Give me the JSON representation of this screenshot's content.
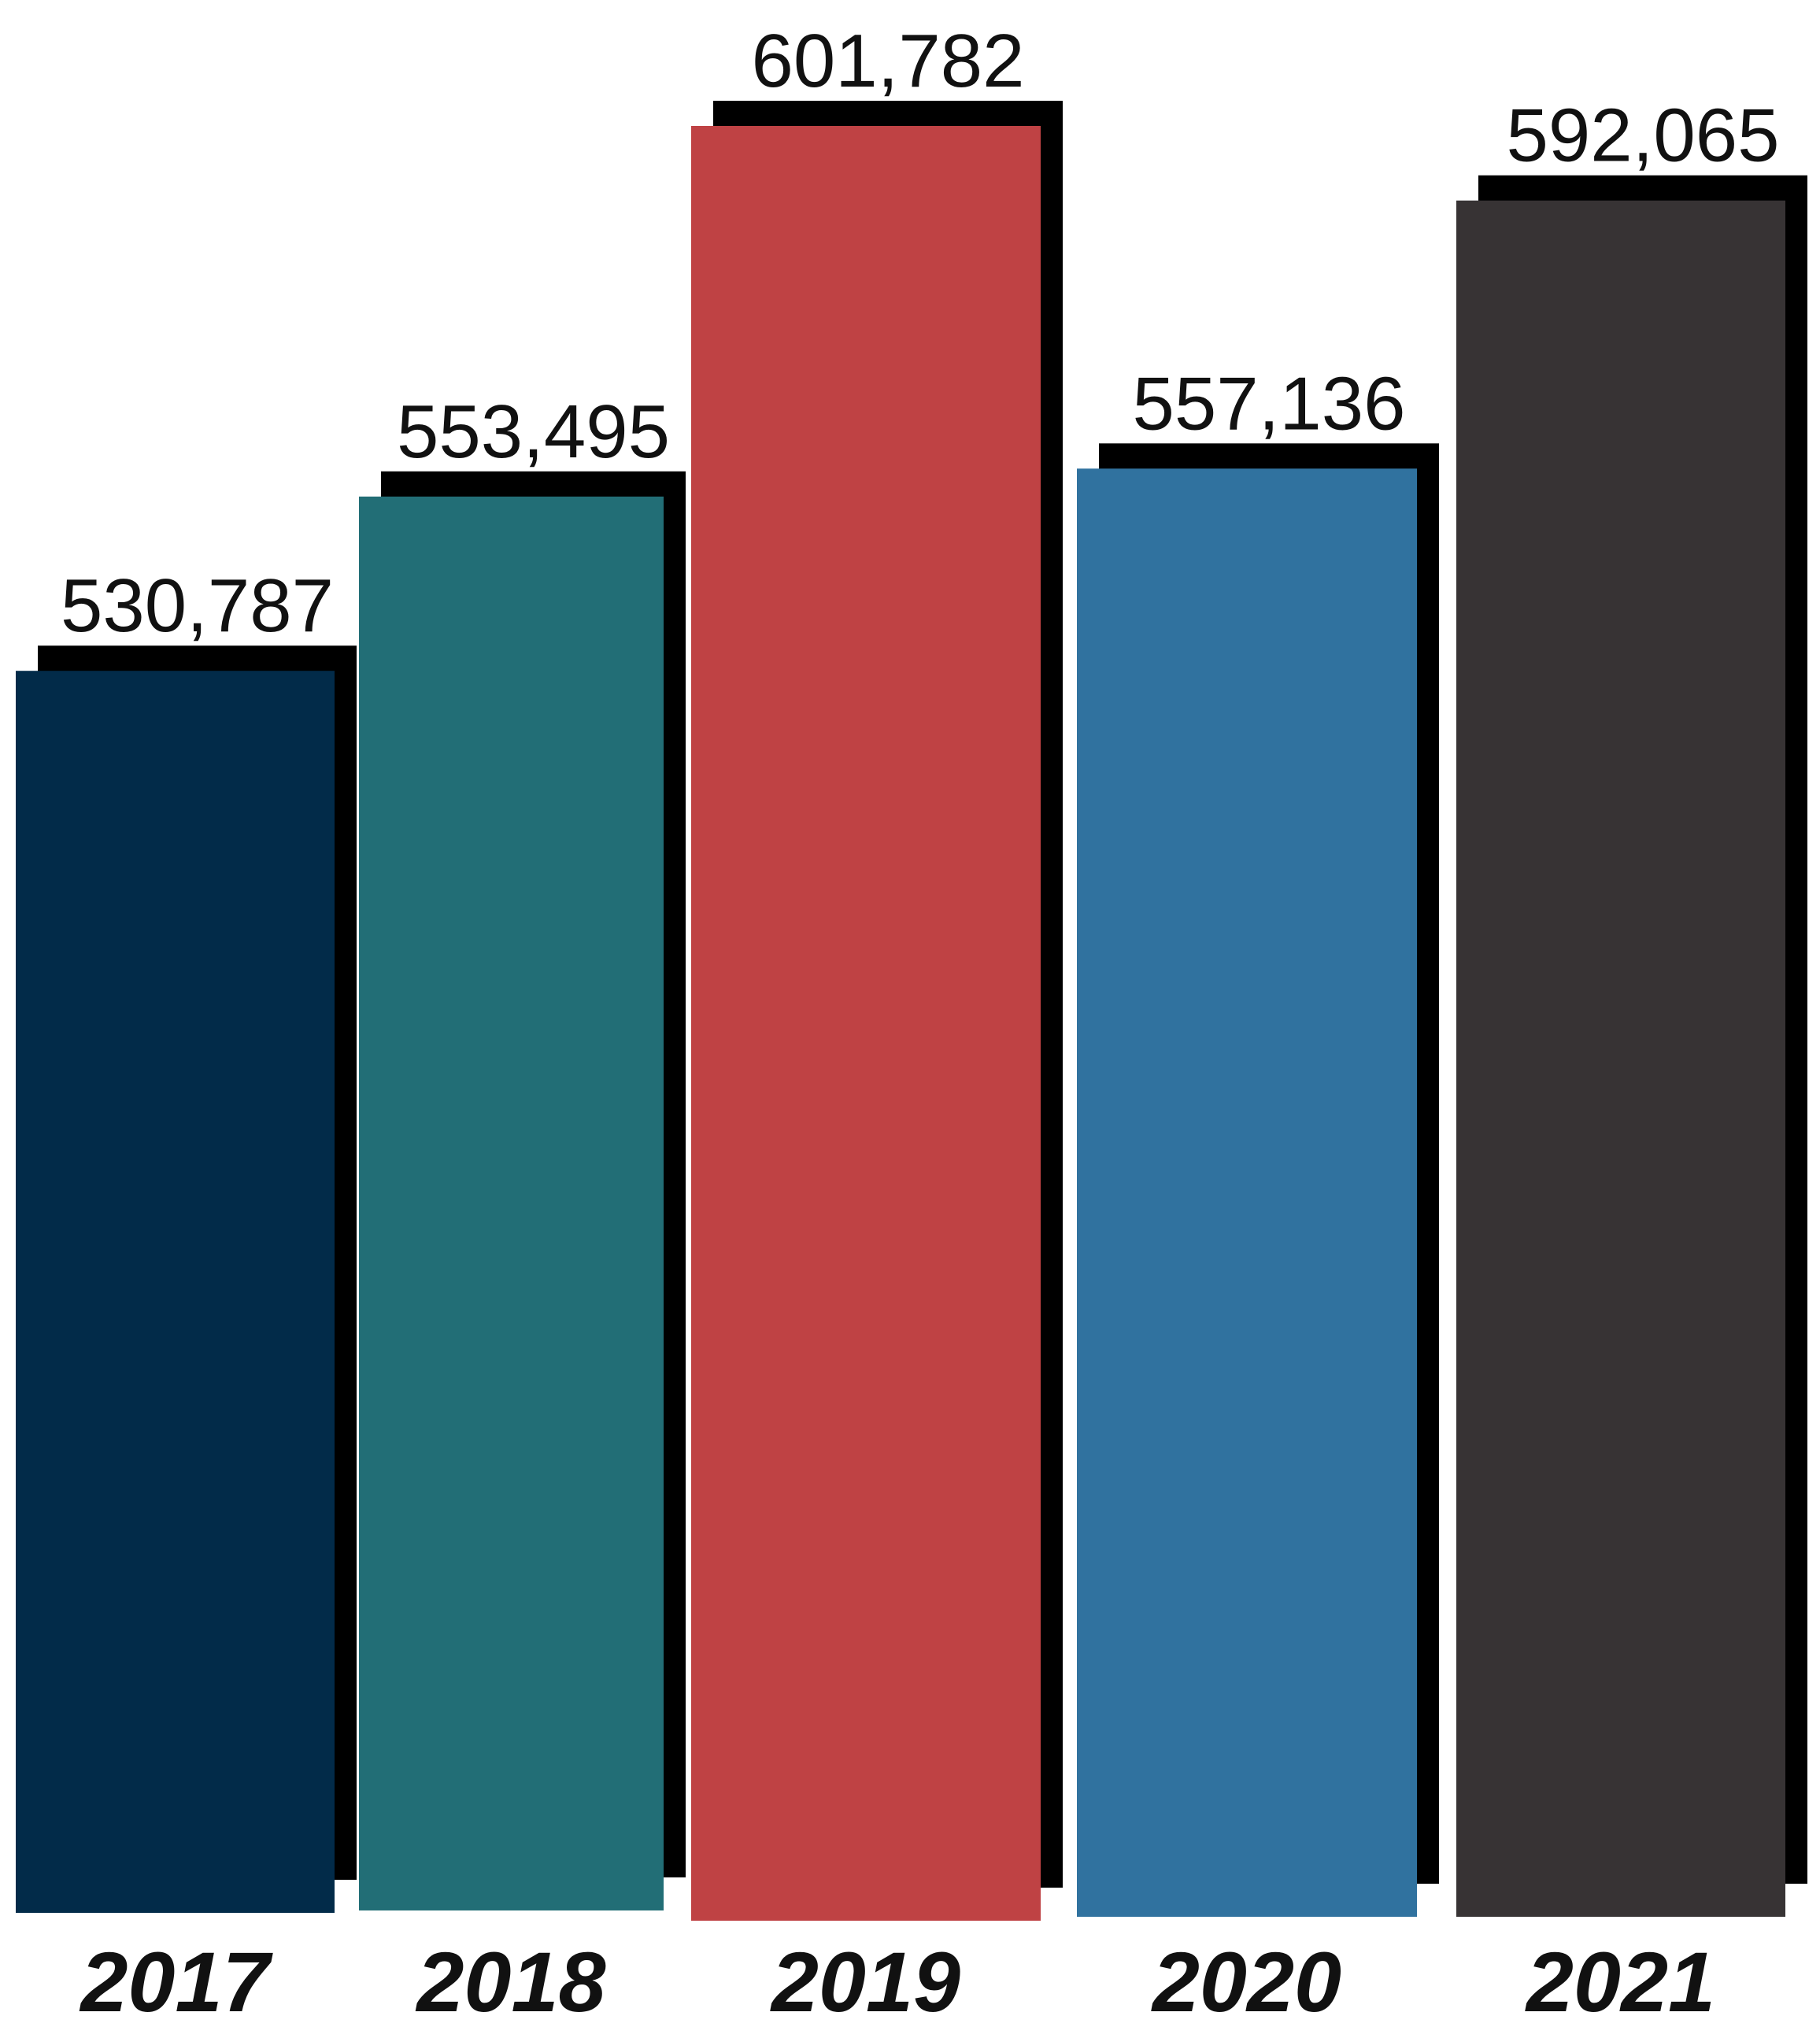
{
  "chart_data": {
    "type": "bar",
    "categories": [
      "2017",
      "2018",
      "2019",
      "2020",
      "2021"
    ],
    "values": [
      530787,
      553495,
      601782,
      557136,
      592065
    ],
    "value_labels": [
      "530,787",
      "553,495",
      "601,782",
      "557,136",
      "592,065"
    ],
    "colors": [
      "#022b49",
      "#226e76",
      "#bf4244",
      "#30729f",
      "#373334"
    ],
    "shadow_color": "#000000",
    "title": "",
    "xlabel": "",
    "ylabel": "",
    "grid": false,
    "legend": "none"
  }
}
